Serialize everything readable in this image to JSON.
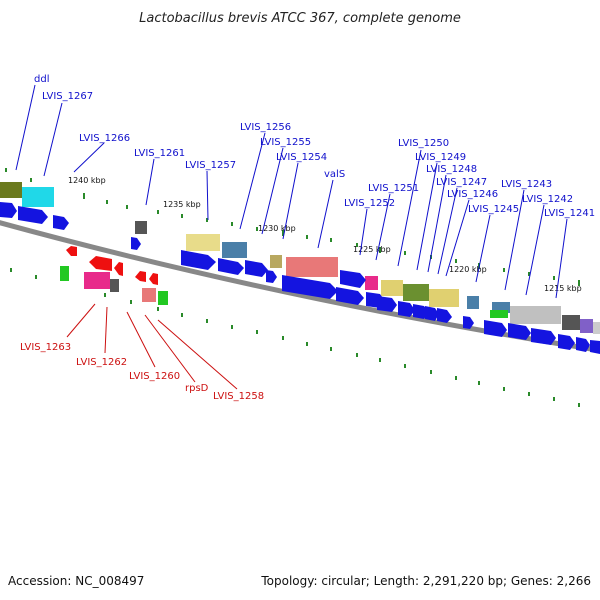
{
  "title": "Lactobacillus brevis ATCC 367, complete genome",
  "footer": {
    "accession": "Accession: NC_008497",
    "summary": "Topology: circular; Length: 2,291,220 bp; Genes: 2,266"
  },
  "ticks": [
    "1240 kbp",
    "1235 kbp",
    "1230 kbp",
    "1225 kbp",
    "1220 kbp",
    "1215 kbp"
  ],
  "colors": {
    "forward_label": "#1010cc",
    "reverse_label": "#cc1010",
    "forward_arrow": "#1414e0",
    "reverse_arrow": "#ee1010",
    "backbone": "#888888"
  },
  "forward_genes": [
    "ddl",
    "LVIS_1267",
    "LVIS_1266",
    "LVIS_1261",
    "LVIS_1257",
    "LVIS_1256",
    "LVIS_1255",
    "LVIS_1254",
    "valS",
    "LVIS_1252",
    "LVIS_1251",
    "LVIS_1250",
    "LVIS_1249",
    "LVIS_1248",
    "LVIS_1247",
    "LVIS_1246",
    "LVIS_1245",
    "LVIS_1243",
    "LVIS_1242",
    "LVIS_1241"
  ],
  "reverse_genes": [
    "LVIS_1263",
    "LVIS_1262",
    "LVIS_1260",
    "rpsD",
    "LVIS_1258"
  ]
}
